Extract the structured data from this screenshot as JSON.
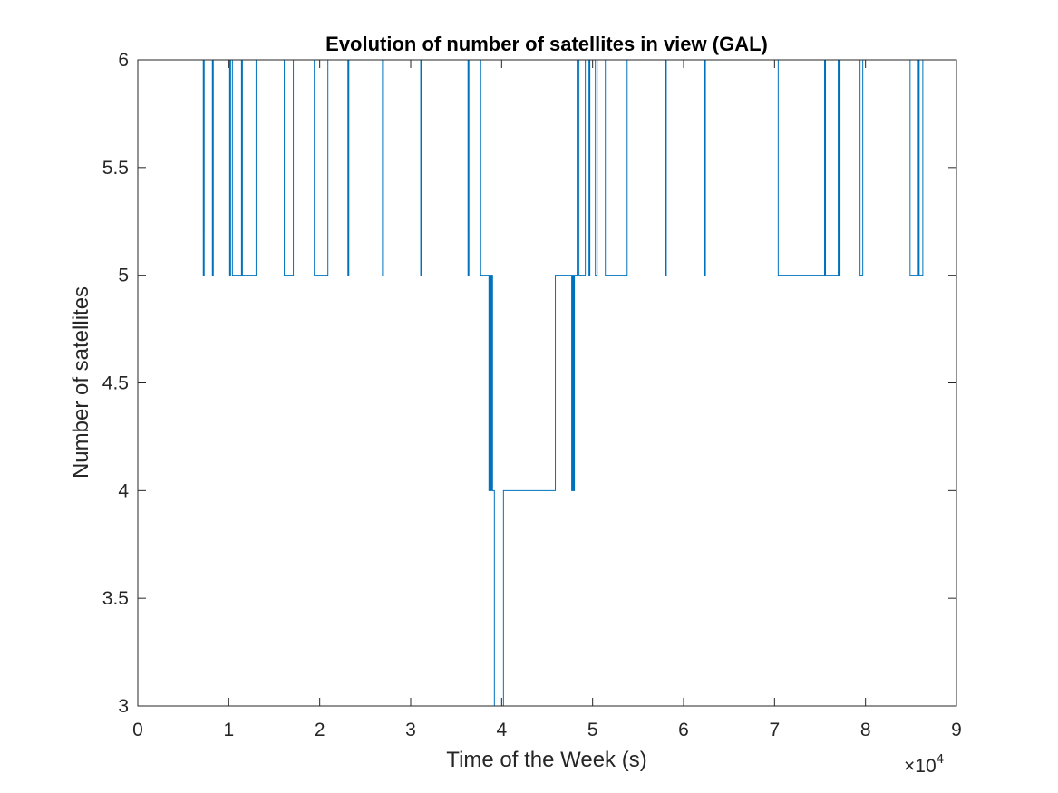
{
  "chart_data": {
    "type": "line",
    "title": "Evolution of number of satellites in view (GAL)",
    "xlabel": "Time of the Week (s)",
    "ylabel": "Number of satellites",
    "x_multiplier": "×10",
    "x_multiplier_exponent": "4",
    "xlim": [
      0,
      90000
    ],
    "ylim": [
      3,
      6
    ],
    "xticks": [
      0,
      10000,
      20000,
      30000,
      40000,
      50000,
      60000,
      70000,
      80000,
      90000
    ],
    "xtick_labels": [
      "0",
      "1",
      "2",
      "3",
      "4",
      "5",
      "6",
      "7",
      "8",
      "9"
    ],
    "yticks": [
      3,
      3.5,
      4,
      4.5,
      5,
      5.5,
      6
    ],
    "ytick_labels": [
      "3",
      "3.5",
      "4",
      "4.5",
      "5",
      "5.5",
      "6"
    ],
    "grid": false,
    "line_color": "#0072BD",
    "series": [
      {
        "x": [
          0,
          7200,
          7200,
          7300,
          7300,
          8200,
          8200,
          8300,
          8300,
          10100,
          10100,
          10200,
          10200,
          10400,
          10400,
          11400,
          11400,
          11500,
          11500,
          11600,
          11600,
          13000,
          13000,
          16100,
          16100,
          17100,
          17100,
          19400,
          19400,
          20900,
          20900,
          23100,
          23100,
          23200,
          23200,
          26900,
          26900,
          27000,
          27000,
          31100,
          31100,
          31200,
          31200,
          36300,
          36300,
          36400,
          36400,
          37700,
          37700,
          38600,
          38600,
          38700,
          38700,
          38800,
          38800,
          38900,
          38900,
          39000,
          39000,
          39100,
          39100,
          39200,
          39200,
          40200,
          40200,
          40600,
          40600,
          45900,
          45900,
          47700,
          47700,
          47800,
          47800,
          47900,
          47900,
          48000,
          48000,
          48300,
          48300,
          48500,
          48500,
          49200,
          49200,
          49600,
          49600,
          49700,
          49700,
          50300,
          50300,
          50500,
          50500,
          51400,
          51400,
          53800,
          53800,
          58000,
          58000,
          58100,
          58100,
          62300,
          62300,
          62400,
          62400,
          70400,
          70400,
          75500,
          75500,
          75600,
          75600,
          77000,
          77000,
          77100,
          77100,
          77200,
          77200,
          79400,
          79400,
          79700,
          79700,
          84900,
          84900,
          85800,
          85800,
          85900,
          85900,
          86300,
          86300,
          86400
        ],
        "y": [
          6,
          6,
          5,
          5,
          6,
          6,
          5,
          5,
          6,
          6,
          5,
          5,
          6,
          6,
          5,
          5,
          6,
          6,
          5,
          5,
          5,
          5,
          6,
          6,
          5,
          5,
          6,
          6,
          5,
          5,
          6,
          6,
          5,
          5,
          6,
          6,
          5,
          5,
          6,
          6,
          5,
          5,
          6,
          6,
          5,
          5,
          6,
          6,
          5,
          5,
          4,
          4,
          5,
          5,
          4,
          4,
          5,
          5,
          4,
          4,
          4,
          4,
          3,
          3,
          4,
          4,
          4,
          4,
          5,
          5,
          4,
          4,
          5,
          5,
          4,
          4,
          5,
          5,
          6,
          6,
          5,
          5,
          6,
          6,
          5,
          5,
          6,
          6,
          5,
          5,
          6,
          6,
          5,
          5,
          6,
          6,
          5,
          5,
          6,
          6,
          5,
          5,
          6,
          6,
          5,
          5,
          6,
          6,
          5,
          5,
          6,
          6,
          5,
          5,
          6,
          6,
          5,
          5,
          6,
          6,
          5,
          5,
          6,
          6,
          5,
          5,
          6,
          6
        ]
      }
    ]
  }
}
